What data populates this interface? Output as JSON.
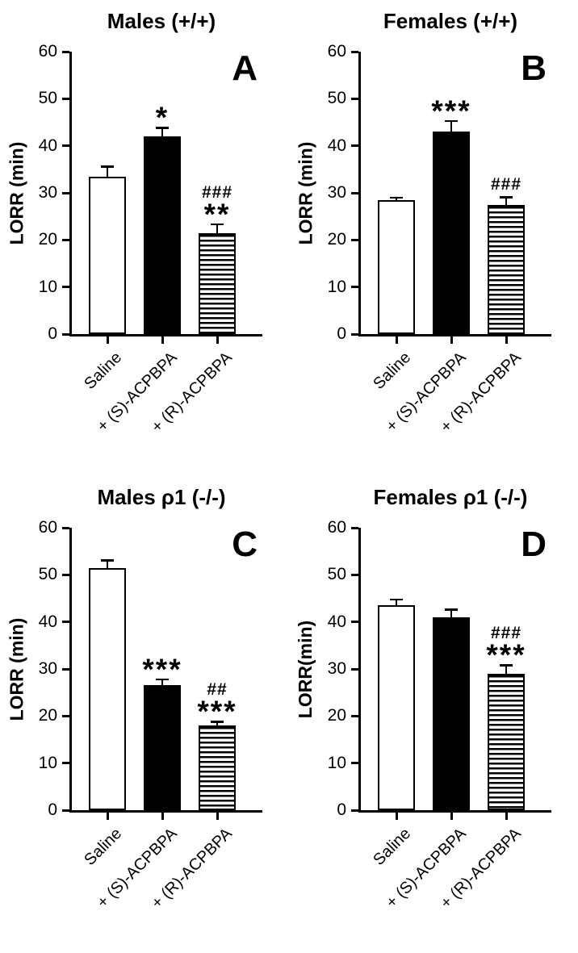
{
  "figure": {
    "background": "#ffffff",
    "axis_color": "#000000",
    "bar_styles": [
      "white-open",
      "solid-black",
      "horizontal-stripes"
    ]
  },
  "chart_data": [
    {
      "type": "bar",
      "panel_label": "A",
      "title": "Males (+/+)",
      "ylabel": "LORR (min)",
      "xlabel": "",
      "ylim": [
        0,
        60
      ],
      "yticks": [
        0,
        10,
        20,
        30,
        40,
        50,
        60
      ],
      "categories": [
        "Saline",
        "+ (S)-ACPBPA",
        "+ (R)-ACPBPA"
      ],
      "values": [
        33.5,
        42,
        21.5
      ],
      "errors": [
        2.3,
        2.0,
        2.0
      ],
      "annotations": [
        [],
        [
          "*"
        ],
        [
          "###",
          "**"
        ]
      ],
      "grid": false,
      "legend": "none"
    },
    {
      "type": "bar",
      "panel_label": "B",
      "title": "Females (+/+)",
      "ylabel": "LORR (min)",
      "xlabel": "",
      "ylim": [
        0,
        60
      ],
      "yticks": [
        0,
        10,
        20,
        30,
        40,
        50,
        60
      ],
      "categories": [
        "Saline",
        "+ (S)-ACPBPA",
        "+ (R)-ACPBPA"
      ],
      "values": [
        28.5,
        43,
        27.5
      ],
      "errors": [
        0.7,
        2.5,
        1.8
      ],
      "annotations": [
        [],
        [
          "***"
        ],
        [
          "###"
        ]
      ],
      "grid": false,
      "legend": "none"
    },
    {
      "type": "bar",
      "panel_label": "C",
      "title": "Males ρ1 (-/-)",
      "ylabel": "LORR (min)",
      "xlabel": "",
      "ylim": [
        0,
        60
      ],
      "yticks": [
        0,
        10,
        20,
        30,
        40,
        50,
        60
      ],
      "categories": [
        "Saline",
        "+ (S)-ACPBPA",
        "+ (R)-ACPBPA"
      ],
      "values": [
        51.5,
        26.5,
        18
      ],
      "errors": [
        1.8,
        1.5,
        1.0
      ],
      "annotations": [
        [],
        [
          "***"
        ],
        [
          "##",
          "***"
        ]
      ],
      "grid": false,
      "legend": "none"
    },
    {
      "type": "bar",
      "panel_label": "D",
      "title": "Females ρ1 (-/-)",
      "ylabel": "LORR(min)",
      "xlabel": "",
      "ylim": [
        0,
        60
      ],
      "yticks": [
        0,
        10,
        20,
        30,
        40,
        50,
        60
      ],
      "categories": [
        "Saline",
        "+ (S)-ACPBPA",
        "+ (R)-ACPBPA"
      ],
      "values": [
        43.5,
        41,
        29
      ],
      "errors": [
        1.5,
        1.8,
        2.0
      ],
      "annotations": [
        [],
        [],
        [
          "###",
          "***"
        ]
      ],
      "grid": false,
      "legend": "none"
    }
  ]
}
